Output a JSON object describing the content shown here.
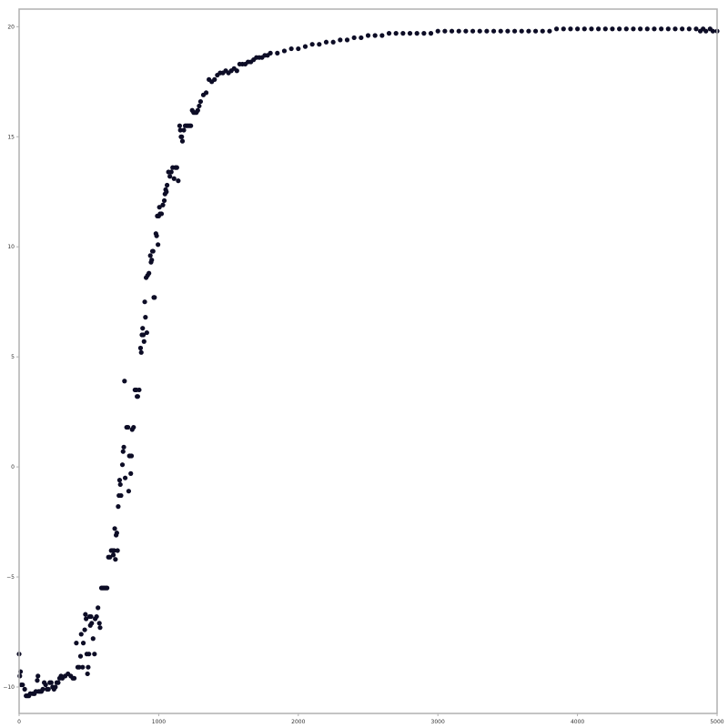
{
  "chart_data": {
    "type": "scatter",
    "title": "",
    "xlabel": "",
    "ylabel": "",
    "xlim": [
      0,
      5000
    ],
    "ylim": [
      -11.2,
      20.8
    ],
    "x_ticks": [
      0,
      1000,
      2000,
      3000,
      4000,
      5000
    ],
    "x_tick_labels": [
      "0",
      "1000",
      "2000",
      "3000",
      "4000",
      "5000"
    ],
    "y_ticks": [
      -10,
      -5,
      0,
      5,
      10,
      15,
      20
    ],
    "y_tick_labels": [
      "−10",
      "−5",
      "0",
      "5",
      "10",
      "15",
      "20"
    ],
    "grid": false,
    "legend": "none",
    "marker_color": "#0d0d26",
    "frame_color": "#b0b0b0",
    "series": [
      {
        "points": [
          [
            0,
            -8.5
          ],
          [
            5,
            -9.5
          ],
          [
            10,
            -9.3
          ],
          [
            15,
            -9.9
          ],
          [
            25,
            -9.9
          ],
          [
            40,
            -10.1
          ],
          [
            50,
            -10.4
          ],
          [
            60,
            -10.4
          ],
          [
            70,
            -10.4
          ],
          [
            80,
            -10.3
          ],
          [
            100,
            -10.3
          ],
          [
            110,
            -10.3
          ],
          [
            120,
            -10.2
          ],
          [
            130,
            -9.7
          ],
          [
            135,
            -9.5
          ],
          [
            140,
            -10.2
          ],
          [
            150,
            -10.2
          ],
          [
            160,
            -10.2
          ],
          [
            170,
            -10.1
          ],
          [
            180,
            -9.8
          ],
          [
            190,
            -9.9
          ],
          [
            200,
            -10.1
          ],
          [
            210,
            -10.1
          ],
          [
            220,
            -9.8
          ],
          [
            230,
            -9.8
          ],
          [
            240,
            -10.0
          ],
          [
            250,
            -10.1
          ],
          [
            260,
            -10.0
          ],
          [
            270,
            -9.8
          ],
          [
            280,
            -9.8
          ],
          [
            290,
            -9.6
          ],
          [
            300,
            -9.5
          ],
          [
            310,
            -9.6
          ],
          [
            330,
            -9.5
          ],
          [
            350,
            -9.4
          ],
          [
            370,
            -9.5
          ],
          [
            385,
            -9.6
          ],
          [
            395,
            -9.6
          ],
          [
            410,
            -8.0
          ],
          [
            420,
            -9.1
          ],
          [
            430,
            -9.1
          ],
          [
            440,
            -8.6
          ],
          [
            445,
            -7.6
          ],
          [
            455,
            -9.1
          ],
          [
            460,
            -8.0
          ],
          [
            470,
            -7.4
          ],
          [
            475,
            -6.7
          ],
          [
            480,
            -6.9
          ],
          [
            485,
            -8.5
          ],
          [
            490,
            -9.4
          ],
          [
            495,
            -9.1
          ],
          [
            500,
            -8.5
          ],
          [
            505,
            -6.8
          ],
          [
            510,
            -7.2
          ],
          [
            515,
            -6.8
          ],
          [
            520,
            -7.1
          ],
          [
            530,
            -7.8
          ],
          [
            540,
            -8.5
          ],
          [
            545,
            -6.9
          ],
          [
            555,
            -6.8
          ],
          [
            565,
            -6.4
          ],
          [
            575,
            -7.1
          ],
          [
            580,
            -7.3
          ],
          [
            590,
            -5.5
          ],
          [
            600,
            -5.5
          ],
          [
            610,
            -5.5
          ],
          [
            620,
            -5.5
          ],
          [
            630,
            -5.5
          ],
          [
            640,
            -4.1
          ],
          [
            650,
            -4.1
          ],
          [
            660,
            -3.8
          ],
          [
            670,
            -3.8
          ],
          [
            675,
            -4.0
          ],
          [
            680,
            -3.8
          ],
          [
            685,
            -2.8
          ],
          [
            690,
            -4.2
          ],
          [
            695,
            -3.1
          ],
          [
            700,
            -3.0
          ],
          [
            705,
            -3.8
          ],
          [
            710,
            -1.8
          ],
          [
            715,
            -1.3
          ],
          [
            720,
            -0.6
          ],
          [
            725,
            -0.8
          ],
          [
            730,
            -1.3
          ],
          [
            740,
            0.1
          ],
          [
            745,
            0.7
          ],
          [
            750,
            0.9
          ],
          [
            755,
            3.9
          ],
          [
            760,
            -0.5
          ],
          [
            770,
            1.8
          ],
          [
            780,
            1.8
          ],
          [
            785,
            -1.1
          ],
          [
            790,
            0.5
          ],
          [
            795,
            0.5
          ],
          [
            800,
            -0.3
          ],
          [
            805,
            0.5
          ],
          [
            810,
            1.7
          ],
          [
            820,
            1.8
          ],
          [
            830,
            3.5
          ],
          [
            840,
            3.5
          ],
          [
            845,
            3.2
          ],
          [
            850,
            3.2
          ],
          [
            860,
            3.5
          ],
          [
            870,
            5.4
          ],
          [
            875,
            5.2
          ],
          [
            880,
            6.0
          ],
          [
            885,
            6.3
          ],
          [
            890,
            6.0
          ],
          [
            895,
            5.7
          ],
          [
            900,
            7.5
          ],
          [
            905,
            6.8
          ],
          [
            910,
            8.6
          ],
          [
            915,
            6.1
          ],
          [
            920,
            8.7
          ],
          [
            930,
            8.8
          ],
          [
            940,
            9.6
          ],
          [
            945,
            9.3
          ],
          [
            950,
            9.4
          ],
          [
            955,
            9.8
          ],
          [
            960,
            9.8
          ],
          [
            965,
            7.7
          ],
          [
            970,
            7.7
          ],
          [
            980,
            10.6
          ],
          [
            985,
            10.5
          ],
          [
            990,
            11.4
          ],
          [
            995,
            10.1
          ],
          [
            1000,
            11.4
          ],
          [
            1005,
            11.8
          ],
          [
            1010,
            11.5
          ],
          [
            1020,
            11.5
          ],
          [
            1030,
            11.9
          ],
          [
            1040,
            12.1
          ],
          [
            1045,
            12.4
          ],
          [
            1050,
            12.6
          ],
          [
            1055,
            12.5
          ],
          [
            1060,
            12.8
          ],
          [
            1070,
            13.4
          ],
          [
            1080,
            13.2
          ],
          [
            1090,
            13.4
          ],
          [
            1100,
            13.6
          ],
          [
            1110,
            13.1
          ],
          [
            1120,
            13.6
          ],
          [
            1130,
            13.6
          ],
          [
            1140,
            13.0
          ],
          [
            1150,
            15.5
          ],
          [
            1155,
            15.3
          ],
          [
            1160,
            15.0
          ],
          [
            1165,
            15.0
          ],
          [
            1170,
            14.8
          ],
          [
            1180,
            15.3
          ],
          [
            1190,
            15.5
          ],
          [
            1200,
            15.5
          ],
          [
            1210,
            15.5
          ],
          [
            1220,
            15.5
          ],
          [
            1230,
            15.5
          ],
          [
            1240,
            16.2
          ],
          [
            1250,
            16.1
          ],
          [
            1260,
            16.1
          ],
          [
            1270,
            16.1
          ],
          [
            1280,
            16.2
          ],
          [
            1290,
            16.4
          ],
          [
            1300,
            16.6
          ],
          [
            1320,
            16.9
          ],
          [
            1340,
            17.0
          ],
          [
            1360,
            17.6
          ],
          [
            1380,
            17.5
          ],
          [
            1400,
            17.6
          ],
          [
            1420,
            17.8
          ],
          [
            1440,
            17.9
          ],
          [
            1460,
            17.9
          ],
          [
            1480,
            18.0
          ],
          [
            1500,
            17.9
          ],
          [
            1520,
            18.0
          ],
          [
            1540,
            18.1
          ],
          [
            1560,
            18.0
          ],
          [
            1580,
            18.3
          ],
          [
            1600,
            18.3
          ],
          [
            1620,
            18.3
          ],
          [
            1640,
            18.4
          ],
          [
            1660,
            18.4
          ],
          [
            1680,
            18.5
          ],
          [
            1700,
            18.6
          ],
          [
            1720,
            18.6
          ],
          [
            1740,
            18.6
          ],
          [
            1760,
            18.7
          ],
          [
            1780,
            18.7
          ],
          [
            1800,
            18.8
          ],
          [
            1850,
            18.8
          ],
          [
            1900,
            18.9
          ],
          [
            1950,
            19.0
          ],
          [
            2000,
            19.0
          ],
          [
            2050,
            19.1
          ],
          [
            2100,
            19.2
          ],
          [
            2150,
            19.2
          ],
          [
            2200,
            19.3
          ],
          [
            2250,
            19.3
          ],
          [
            2300,
            19.4
          ],
          [
            2350,
            19.4
          ],
          [
            2400,
            19.5
          ],
          [
            2450,
            19.5
          ],
          [
            2500,
            19.6
          ],
          [
            2550,
            19.6
          ],
          [
            2600,
            19.6
          ],
          [
            2650,
            19.7
          ],
          [
            2700,
            19.7
          ],
          [
            2750,
            19.7
          ],
          [
            2800,
            19.7
          ],
          [
            2850,
            19.7
          ],
          [
            2900,
            19.7
          ],
          [
            2950,
            19.7
          ],
          [
            3000,
            19.8
          ],
          [
            3050,
            19.8
          ],
          [
            3100,
            19.8
          ],
          [
            3150,
            19.8
          ],
          [
            3200,
            19.8
          ],
          [
            3250,
            19.8
          ],
          [
            3300,
            19.8
          ],
          [
            3350,
            19.8
          ],
          [
            3400,
            19.8
          ],
          [
            3450,
            19.8
          ],
          [
            3500,
            19.8
          ],
          [
            3550,
            19.8
          ],
          [
            3600,
            19.8
          ],
          [
            3650,
            19.8
          ],
          [
            3700,
            19.8
          ],
          [
            3750,
            19.8
          ],
          [
            3800,
            19.8
          ],
          [
            3850,
            19.9
          ],
          [
            3900,
            19.9
          ],
          [
            3950,
            19.9
          ],
          [
            4000,
            19.9
          ],
          [
            4050,
            19.9
          ],
          [
            4100,
            19.9
          ],
          [
            4150,
            19.9
          ],
          [
            4200,
            19.9
          ],
          [
            4250,
            19.9
          ],
          [
            4300,
            19.9
          ],
          [
            4350,
            19.9
          ],
          [
            4400,
            19.9
          ],
          [
            4450,
            19.9
          ],
          [
            4500,
            19.9
          ],
          [
            4550,
            19.9
          ],
          [
            4600,
            19.9
          ],
          [
            4650,
            19.9
          ],
          [
            4700,
            19.9
          ],
          [
            4750,
            19.9
          ],
          [
            4800,
            19.9
          ],
          [
            4850,
            19.9
          ],
          [
            4880,
            19.8
          ],
          [
            4900,
            19.9
          ],
          [
            4920,
            19.8
          ],
          [
            4950,
            19.9
          ],
          [
            4970,
            19.8
          ],
          [
            5000,
            19.8
          ]
        ]
      }
    ]
  }
}
